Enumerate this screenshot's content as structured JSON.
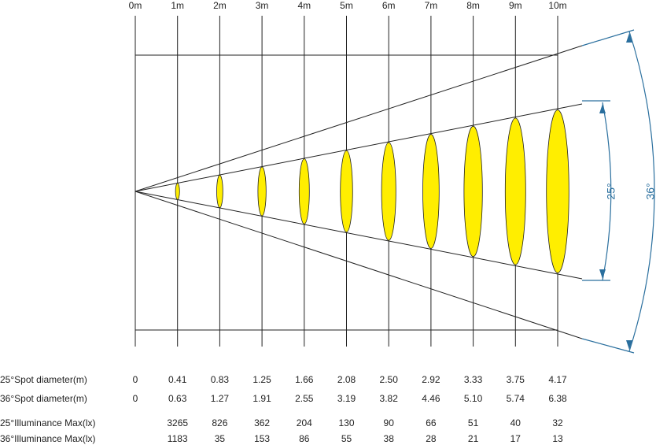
{
  "distances": [
    "0m",
    "1m",
    "2m",
    "3m",
    "4m",
    "5m",
    "6m",
    "7m",
    "8m",
    "9m",
    "10m"
  ],
  "angle_labels": [
    "25°",
    "36°"
  ],
  "rows": [
    {
      "label": "25°Spot diameter(m)",
      "values": [
        "0",
        "0.41",
        "0.83",
        "1.25",
        "1.66",
        "2.08",
        "2.50",
        "2.92",
        "3.33",
        "3.75",
        "4.17"
      ]
    },
    {
      "label": "36°Spot diameter(m)",
      "values": [
        "0",
        "0.63",
        "1.27",
        "1.91",
        "2.55",
        "3.19",
        "3.82",
        "4.46",
        "5.10",
        "5.74",
        "6.38"
      ]
    },
    {
      "label": "25°Illuminance Max(lx)",
      "values": [
        "3265",
        "826",
        "362",
        "204",
        "130",
        "90",
        "66",
        "51",
        "40",
        "32"
      ]
    },
    {
      "label": "36°Illuminance Max(lx)",
      "values": [
        "1183",
        "35",
        "153",
        "86",
        "55",
        "38",
        "28",
        "21",
        "17",
        "13"
      ]
    }
  ]
}
